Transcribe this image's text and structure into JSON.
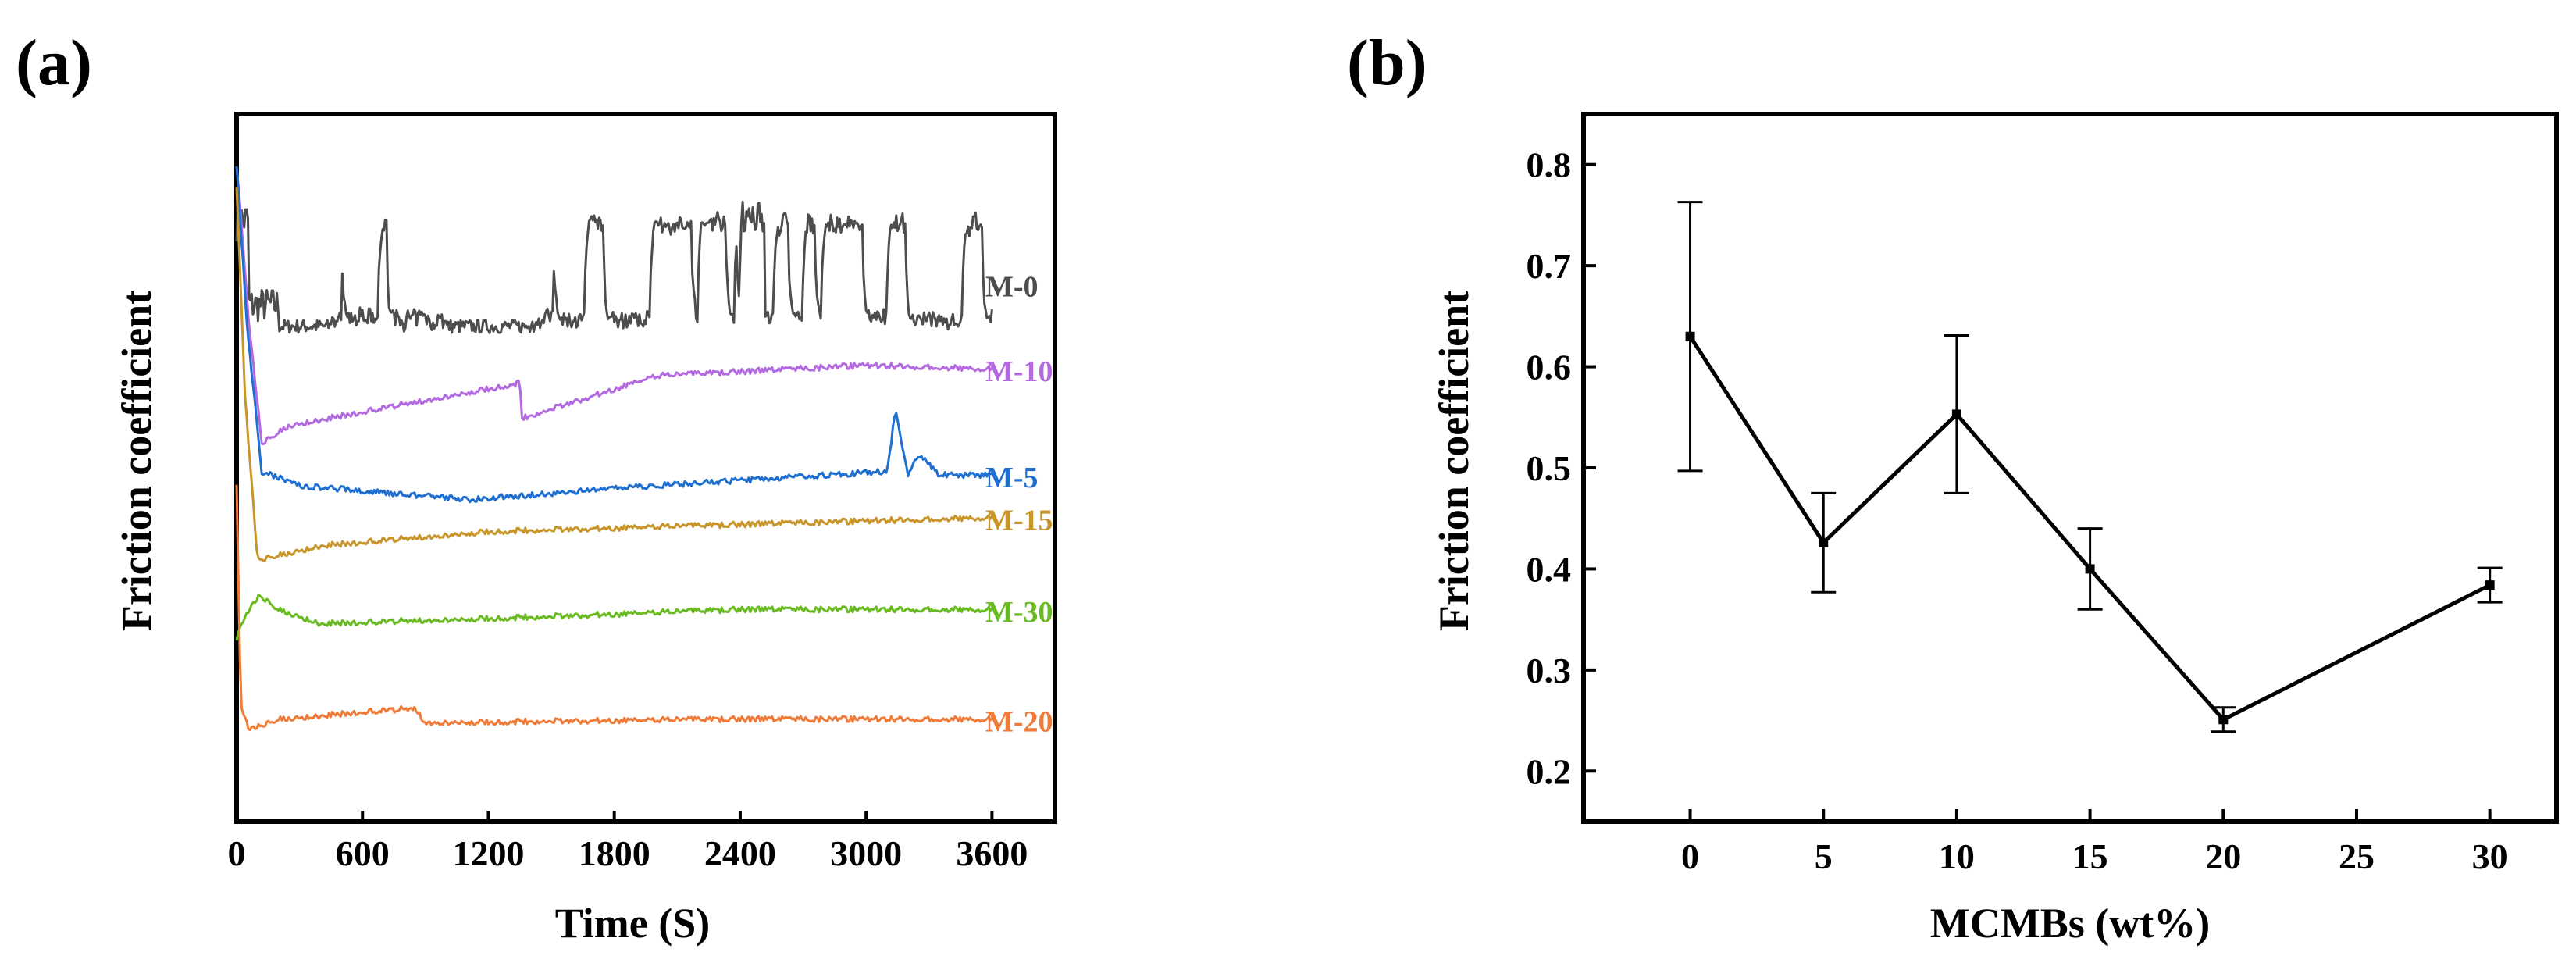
{
  "chart_data": [
    {
      "panel_label": "(a)",
      "type": "line",
      "xlabel": "Time (S)",
      "ylabel": "Friction coefficient",
      "xlim": [
        0,
        3900
      ],
      "ylim": [
        0,
        1
      ],
      "xticks": [
        "0",
        "600",
        "1200",
        "1800",
        "2400",
        "3000",
        "3600"
      ],
      "xtick_values": [
        0,
        600,
        1200,
        1800,
        2400,
        3000,
        3600
      ],
      "y_tick_labels_shown": false,
      "series": [
        {
          "name": "M-0",
          "color": "#4d4d4d",
          "mode": "noisy",
          "start": 0.85,
          "baseline": 0.7,
          "high": 0.86,
          "seed": 7
        },
        {
          "name": "M-10",
          "color": "#b36ae0",
          "mode": "ramp",
          "start": 0.93,
          "trough": 0.515,
          "points": [
            [
              0,
              0.93
            ],
            [
              60,
              0.7
            ],
            [
              120,
              0.535
            ],
            [
              250,
              0.56
            ],
            [
              1350,
              0.62
            ],
            [
              1360,
              0.57
            ],
            [
              2000,
              0.63
            ],
            [
              3000,
              0.645
            ],
            [
              3600,
              0.64
            ]
          ]
        },
        {
          "name": "M-5",
          "color": "#1f6fd1",
          "mode": "flat",
          "points": [
            [
              0,
              0.93
            ],
            [
              50,
              0.7
            ],
            [
              120,
              0.495
            ],
            [
              300,
              0.475
            ],
            [
              1100,
              0.455
            ],
            [
              2000,
              0.475
            ],
            [
              3100,
              0.495
            ],
            [
              3140,
              0.58
            ],
            [
              3200,
              0.49
            ],
            [
              3250,
              0.52
            ],
            [
              3350,
              0.49
            ],
            [
              3600,
              0.49
            ]
          ]
        },
        {
          "name": "M-15",
          "color": "#c8952b",
          "mode": "flat",
          "points": [
            [
              0,
              0.9
            ],
            [
              40,
              0.6
            ],
            [
              100,
              0.37
            ],
            [
              400,
              0.39
            ],
            [
              1200,
              0.41
            ],
            [
              2400,
              0.42
            ],
            [
              3600,
              0.43
            ]
          ]
        },
        {
          "name": "M-30",
          "color": "#6aba22",
          "mode": "flat",
          "points": [
            [
              0,
              0.26
            ],
            [
              60,
              0.3
            ],
            [
              110,
              0.32
            ],
            [
              200,
              0.3
            ],
            [
              400,
              0.28
            ],
            [
              1500,
              0.29
            ],
            [
              2400,
              0.3
            ],
            [
              3600,
              0.3
            ]
          ]
        },
        {
          "name": "M-20",
          "color": "#f07a37",
          "mode": "flat",
          "points": [
            [
              0,
              0.48
            ],
            [
              20,
              0.16
            ],
            [
              60,
              0.13
            ],
            [
              200,
              0.145
            ],
            [
              600,
              0.155
            ],
            [
              850,
              0.16
            ],
            [
              900,
              0.14
            ],
            [
              2400,
              0.145
            ],
            [
              3600,
              0.145
            ]
          ]
        }
      ]
    },
    {
      "panel_label": "(b)",
      "type": "line",
      "xlabel": "MCMBs (wt%)",
      "ylabel": "Friction coefficient",
      "xlim": [
        -4,
        32.5
      ],
      "ylim": [
        0.15,
        0.85
      ],
      "xticks": [
        0,
        5,
        10,
        15,
        20,
        25,
        30
      ],
      "yticks": [
        0.2,
        0.3,
        0.4,
        0.5,
        0.6,
        0.7,
        0.8
      ],
      "ytick_labels": [
        "0.2",
        "0.3",
        "0.4",
        "0.5",
        "0.6",
        "0.7",
        "0.8"
      ],
      "x": [
        0,
        5,
        10,
        15,
        20,
        30
      ],
      "y": [
        0.63,
        0.426,
        0.553,
        0.4,
        0.251,
        0.384
      ],
      "error": [
        0.133,
        0.049,
        0.078,
        0.04,
        0.012,
        0.017
      ],
      "color": "#000000"
    }
  ]
}
